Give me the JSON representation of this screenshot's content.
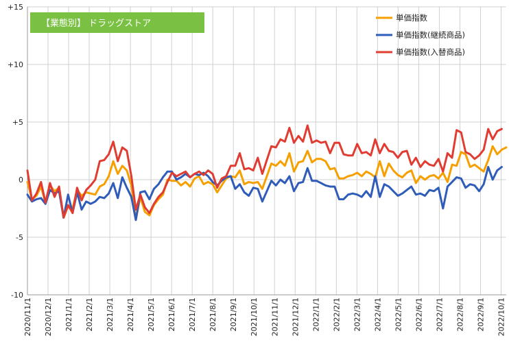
{
  "chart_data": {
    "type": "line",
    "title": "【業態別】 ドラッグストア",
    "title_bg": "#7ac143",
    "ylim": [
      -10,
      15
    ],
    "y_ticks": [
      {
        "value": 15,
        "label": "+15"
      },
      {
        "value": 10,
        "label": "+10"
      },
      {
        "value": 5,
        "label": "+5"
      },
      {
        "value": 0,
        "label": "0"
      },
      {
        "value": -5,
        "label": "-5"
      },
      {
        "value": -10,
        "label": "-10"
      }
    ],
    "grid": true,
    "legend_position": "top-right",
    "x_tick_labels": [
      "2020/11/1",
      "2020/12/1",
      "2021/1/1",
      "2021/2/1",
      "2021/3/1",
      "2021/4/1",
      "2021/5/1",
      "2021/6/1",
      "2021/7/1",
      "2021/8/1",
      "2021/9/1",
      "2021/10/1",
      "2021/11/1",
      "2021/12/1",
      "2022/1/1",
      "2022/2/1",
      "2022/3/1",
      "2022/4/1",
      "2022/5/1",
      "2022/6/1",
      "2022/7/1",
      "2022/8/1",
      "2022/9/1",
      "2022/10/1"
    ],
    "series": [
      {
        "name": "単価指数",
        "color": "#f5a000",
        "values": [
          -0.2,
          -1.7,
          -1.4,
          -0.6,
          -2.0,
          -0.5,
          -1.0,
          -0.7,
          -3.3,
          -2.3,
          -2.5,
          -0.9,
          -1.4,
          -1.1,
          -1.2,
          -1.3,
          -0.6,
          -0.4,
          0.3,
          1.6,
          0.5,
          1.2,
          0.8,
          -0.5,
          -3.5,
          -1.5,
          -2.8,
          -3.1,
          -2.2,
          -1.7,
          -1.3,
          0.0,
          -0.1,
          -0.1,
          -0.5,
          -0.2,
          -0.6,
          0.1,
          0.3,
          -0.4,
          -0.2,
          -0.4,
          -1.1,
          -0.5,
          0.1,
          0.3,
          0.2,
          0.8,
          -0.4,
          -0.2,
          -0.3,
          -0.2,
          -0.8,
          0.3,
          1.4,
          1.2,
          1.6,
          1.2,
          2.3,
          0.7,
          1.5,
          1.6,
          2.5,
          1.5,
          1.8,
          1.8,
          1.6,
          0.9,
          1.0,
          0.1,
          0.1,
          0.3,
          0.4,
          0.6,
          0.3,
          0.7,
          0.5,
          0.2,
          1.6,
          0.3,
          1.4,
          0.8,
          0.4,
          0.2,
          0.6,
          0.8,
          -0.3,
          0.3,
          0.0,
          0.3,
          0.4,
          0.1,
          0.6,
          -0.2,
          1.3,
          1.2,
          2.4,
          2.2,
          1.1,
          1.3,
          1.0,
          0.7,
          1.7,
          2.9,
          2.2,
          2.6,
          2.8
        ]
      },
      {
        "name": "単価指数(継続商品)",
        "color": "#2e5cb8",
        "values": [
          -1.3,
          -1.9,
          -1.7,
          -1.6,
          -2.1,
          -0.9,
          -1.2,
          -1.0,
          -3.3,
          -1.3,
          -2.9,
          -1.1,
          -2.6,
          -1.9,
          -2.1,
          -1.9,
          -1.5,
          -1.6,
          -1.2,
          -0.3,
          -1.6,
          0.2,
          -0.7,
          -1.5,
          -3.5,
          -1.1,
          -1.0,
          -1.7,
          -0.8,
          -0.4,
          0.2,
          0.7,
          0.7,
          0.0,
          0.2,
          0.5,
          0.2,
          0.5,
          0.4,
          0.6,
          0.3,
          -0.2,
          -0.5,
          -0.1,
          0.2,
          0.3,
          -0.8,
          -0.4,
          -1.1,
          -1.4,
          -0.7,
          -0.8,
          -1.9,
          -1.0,
          -0.1,
          -0.5,
          0.0,
          -0.3,
          0.3,
          -1.0,
          -0.3,
          -0.2,
          1.0,
          -0.1,
          -0.1,
          -0.3,
          -0.5,
          -0.6,
          -0.6,
          -1.7,
          -1.7,
          -1.3,
          -1.2,
          -1.3,
          -1.5,
          -1.0,
          -1.5,
          0.3,
          -1.5,
          -0.4,
          -0.6,
          -1.0,
          -1.4,
          -1.2,
          -0.9,
          -0.6,
          -1.3,
          -1.2,
          -1.4,
          -0.9,
          -1.0,
          -0.7,
          -2.5,
          -0.6,
          -0.2,
          0.2,
          0.1,
          -0.7,
          -0.4,
          -0.5,
          -1.0,
          -0.4,
          1.1,
          0.0,
          0.8,
          1.1
        ]
      },
      {
        "name": "単価指数(入替商品)",
        "color": "#e03c31",
        "values": [
          0.8,
          -1.8,
          -1.2,
          -0.2,
          -2.0,
          -0.3,
          -1.5,
          -0.6,
          -3.3,
          -2.2,
          -2.9,
          -0.7,
          -1.8,
          -0.9,
          -0.5,
          0.0,
          1.6,
          1.7,
          2.2,
          3.3,
          1.6,
          2.8,
          2.5,
          0.3,
          -2.6,
          -1.3,
          -2.4,
          -2.9,
          -2.1,
          -1.5,
          -1.1,
          -0.2,
          0.6,
          0.3,
          0.5,
          0.7,
          0.2,
          0.5,
          0.7,
          0.4,
          0.8,
          0.5,
          -0.7,
          0.1,
          0.3,
          1.2,
          1.2,
          2.3,
          0.9,
          1.0,
          0.8,
          1.9,
          0.5,
          1.7,
          2.9,
          2.8,
          3.5,
          3.3,
          4.5,
          3.2,
          3.8,
          3.3,
          4.7,
          3.2,
          3.4,
          3.2,
          3.3,
          2.3,
          3.2,
          3.2,
          2.2,
          2.1,
          2.1,
          3.1,
          2.3,
          2.4,
          2.1,
          3.5,
          2.3,
          3.1,
          2.5,
          2.4,
          1.9,
          2.4,
          2.5,
          1.3,
          1.9,
          1.1,
          1.6,
          1.3,
          1.2,
          1.8,
          0.7,
          2.3,
          1.9,
          4.3,
          4.1,
          2.4,
          2.2,
          1.8,
          2.1,
          2.6,
          4.4,
          3.5,
          4.2,
          4.4
        ]
      }
    ]
  }
}
